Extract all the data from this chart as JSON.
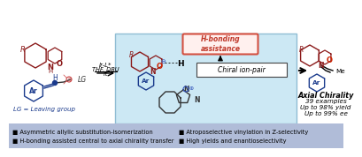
{
  "bg_color": "#ffffff",
  "panel_bg": "#cce8f4",
  "panel_border": "#90bdd4",
  "footer_bg": "#b0bcd8",
  "footer_text_color": "#000000",
  "hbond_box_color": "#d45040",
  "title_color": "#8b1a1a",
  "blue_color": "#1a3a8c",
  "red_color": "#c0392b",
  "footer_lines": [
    [
      "■ Asymmetric allylic substitution-isomerization",
      "■ Atroposelective vinylation in Z-selectivity"
    ],
    [
      "■ H-bonding assisted central to axial chirality transfer",
      "■ High yields and enantioselectivity"
    ]
  ],
  "conditions": [
    "Ir-L*",
    "THF, DBU",
    "rt"
  ],
  "axial_labels": [
    "Axial Chirality",
    "39 examples",
    "Up to 98% yield",
    "Up to 99% ee"
  ],
  "lg_label": "LG = Leaving group",
  "hbond_label": "H-bonding\nassistance",
  "chiral_label": "Chiral ion-pair"
}
